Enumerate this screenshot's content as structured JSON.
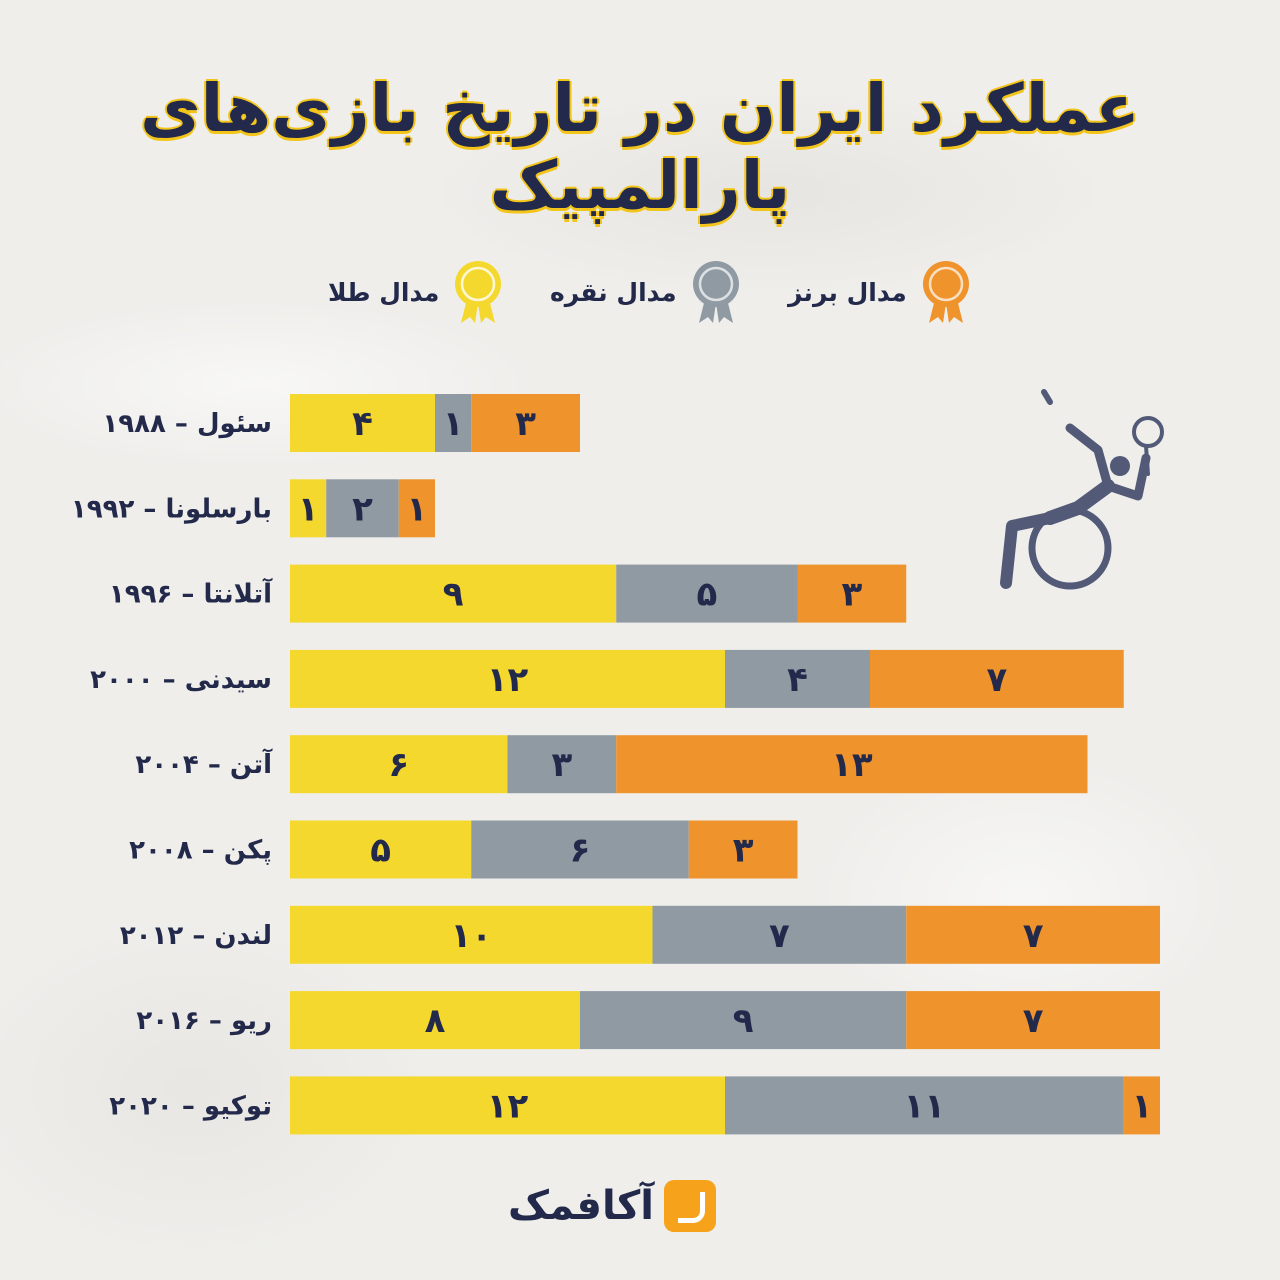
{
  "title": "عملکرد ایران در تاریخ بازی‌های پارالمپیک",
  "legend": {
    "bronze": "مدال برنز",
    "silver": "مدال نقره",
    "gold": "مدال طلا"
  },
  "colors": {
    "gold": "#f5d82d",
    "silver": "#8f9aa3",
    "bronze": "#ef932c",
    "text": "#22294a"
  },
  "brand": "آکافمک",
  "icons": [
    "wheelchair-badminton-icon",
    "bronze-medal-icon",
    "silver-medal-icon",
    "gold-medal-icon"
  ],
  "chart_data": {
    "type": "bar",
    "orientation": "horizontal",
    "stacked": true,
    "categories": [
      "۱۹۸۸ – سئول",
      "۱۹۹۲ – بارسلونا",
      "۱۹۹۶ – آتلانتا",
      "۲۰۰۰ – سیدنی",
      "۲۰۰۴ – آتن",
      "۲۰۰۸ – پکن",
      "۲۰۱۲ – لندن",
      "۲۰۱۶ – ریو",
      "۲۰۲۰ – توکیو"
    ],
    "series": [
      {
        "name": "مدال طلا",
        "color": "#f5d82d",
        "values": [
          4,
          1,
          9,
          12,
          6,
          5,
          10,
          8,
          12
        ],
        "labels": [
          "۴",
          "۱",
          "۹",
          "۱۲",
          "۶",
          "۵",
          "۱۰",
          "۸",
          "۱۲"
        ]
      },
      {
        "name": "مدال نقره",
        "color": "#8f9aa3",
        "values": [
          1,
          2,
          5,
          4,
          3,
          6,
          7,
          9,
          11
        ],
        "labels": [
          "۱",
          "۲",
          "۵",
          "۴",
          "۳",
          "۶",
          "۷",
          "۹",
          "۱۱"
        ]
      },
      {
        "name": "مدال برنز",
        "color": "#ef932c",
        "values": [
          3,
          1,
          3,
          7,
          13,
          3,
          7,
          7,
          1
        ],
        "labels": [
          "۳",
          "۱",
          "۳",
          "۷",
          "۱۳",
          "۳",
          "۷",
          "۷",
          "۱"
        ]
      }
    ],
    "legend_position": "top",
    "grid": false,
    "title": "عملکرد ایران در تاریخ بازی‌های پارالمپیک"
  }
}
